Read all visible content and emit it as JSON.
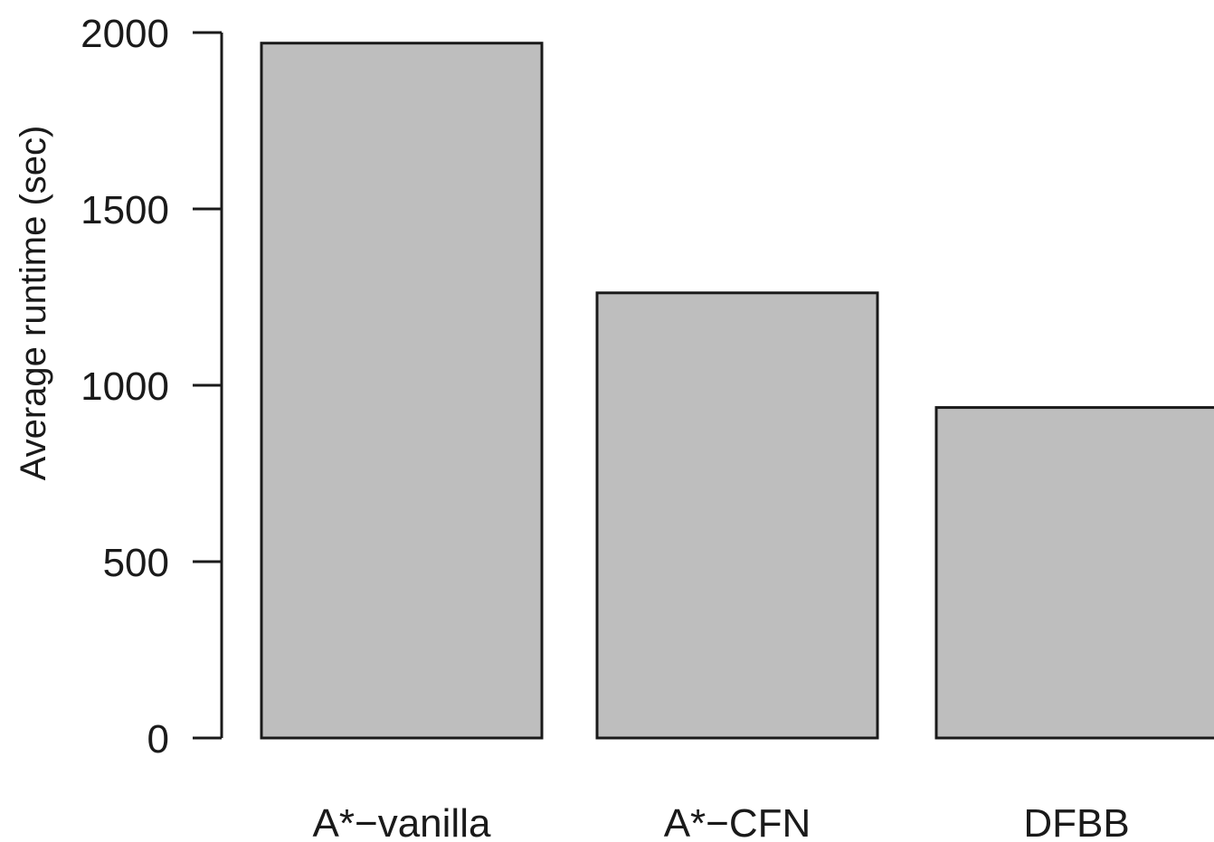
{
  "chart_data": {
    "type": "bar",
    "categories": [
      "A*−vanilla",
      "A*−CFN",
      "DFBB"
    ],
    "values": [
      1970,
      1262,
      937
    ],
    "title": "",
    "xlabel": "",
    "ylabel": "Average runtime (sec)",
    "ylim": [
      0,
      2000
    ],
    "yticks": [
      0,
      500,
      1000,
      1500,
      2000
    ],
    "grid": false,
    "colors": {
      "bar_fill": "#bebebe",
      "bar_stroke": "#1a1a1a",
      "text": "#1a1a1a"
    }
  }
}
